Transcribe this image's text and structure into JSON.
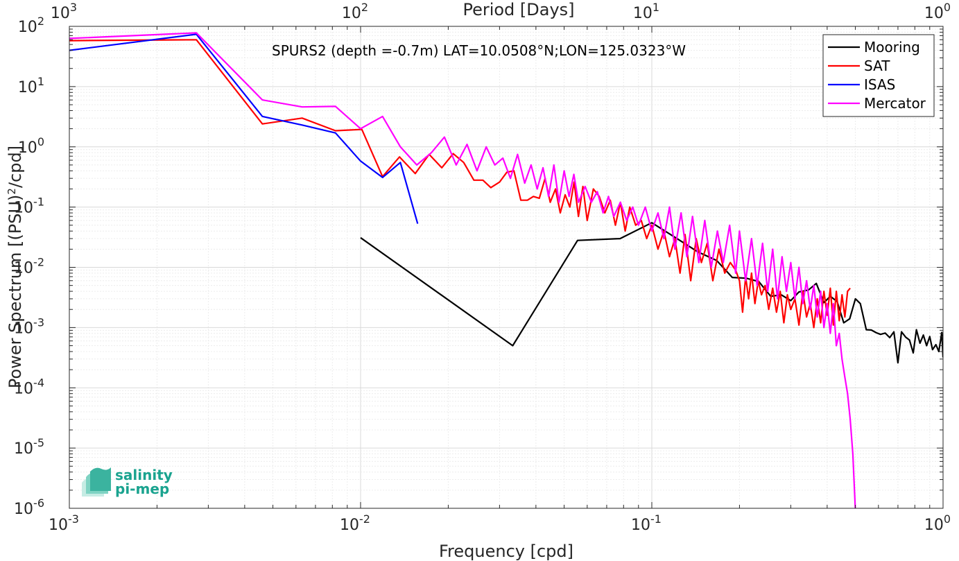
{
  "chart_data": {
    "type": "line",
    "xlabel": "Frequency [cpd]",
    "ylabel": "Power Spectrum [(PSU)",
    "ylabel_sup": "2",
    "ylabel_suffix": "/cpd]",
    "top_axis_label": "Period [Days]",
    "annotation": "SPURS2 (depth =-0.7m) LAT=10.0508°N;LON=125.0323°W",
    "x_scale": "log",
    "y_scale": "log",
    "xlim": [
      0.001,
      1
    ],
    "ylim": [
      1e-06,
      100
    ],
    "grid": true,
    "legend_position": "top-right",
    "x_ticks": [
      {
        "value": 0.001,
        "base": "10",
        "exp": "-3"
      },
      {
        "value": 0.01,
        "base": "10",
        "exp": "-2"
      },
      {
        "value": 0.1,
        "base": "10",
        "exp": "-1"
      },
      {
        "value": 1,
        "base": "10",
        "exp": "0"
      }
    ],
    "top_ticks": [
      {
        "value": 0.001,
        "base": "10",
        "exp": "3"
      },
      {
        "value": 0.01,
        "base": "10",
        "exp": "2"
      },
      {
        "value": 0.1,
        "base": "10",
        "exp": "1"
      },
      {
        "value": 1,
        "base": "10",
        "exp": "0"
      }
    ],
    "y_ticks": [
      {
        "value": 100,
        "base": "10",
        "exp": "2"
      },
      {
        "value": 10,
        "base": "10",
        "exp": "1"
      },
      {
        "value": 1,
        "base": "10",
        "exp": "0"
      },
      {
        "value": 0.1,
        "base": "10",
        "exp": "-1"
      },
      {
        "value": 0.01,
        "base": "10",
        "exp": "-2"
      },
      {
        "value": 0.001,
        "base": "10",
        "exp": "-3"
      },
      {
        "value": 0.0001,
        "base": "10",
        "exp": "-4"
      },
      {
        "value": 1e-05,
        "base": "10",
        "exp": "-5"
      },
      {
        "value": 1e-06,
        "base": "10",
        "exp": "-6"
      }
    ],
    "series": [
      {
        "name": "Mooring",
        "color": "#000000",
        "x": [
          0.01,
          0.0333,
          0.0556,
          0.0778,
          0.1,
          0.122,
          0.144,
          0.167,
          0.189,
          0.211,
          0.233,
          0.256,
          0.278,
          0.3,
          0.32,
          0.345,
          0.367,
          0.39,
          0.41,
          0.433,
          0.456,
          0.478,
          0.5,
          0.52,
          0.545,
          0.567,
          0.59,
          0.61,
          0.633,
          0.656,
          0.678,
          0.7,
          0.72,
          0.745,
          0.767,
          0.79,
          0.81,
          0.833,
          0.856,
          0.878,
          0.9,
          0.92,
          0.945,
          0.967,
          0.99,
          1.0
        ],
        "y": [
          0.031,
          0.0005,
          0.028,
          0.03,
          0.055,
          0.03,
          0.018,
          0.013,
          0.0068,
          0.0066,
          0.0058,
          0.0033,
          0.0035,
          0.0028,
          0.0039,
          0.0042,
          0.0054,
          0.0026,
          0.0033,
          0.0027,
          0.0012,
          0.0014,
          0.003,
          0.0025,
          0.00092,
          0.00091,
          0.00082,
          0.00077,
          0.00081,
          0.00068,
          0.00085,
          0.00026,
          0.00085,
          0.00069,
          0.00062,
          0.00038,
          0.00092,
          0.00055,
          0.00075,
          0.0005,
          0.00071,
          0.00043,
          0.00052,
          0.0004,
          0.00083,
          0.00032
        ]
      },
      {
        "name": "SAT",
        "color": "#ff0000",
        "x": [
          0.001,
          0.00273,
          0.0046,
          0.0063,
          0.0082,
          0.0101,
          0.0119,
          0.0136,
          0.0154,
          0.0172,
          0.019,
          0.0208,
          0.0226,
          0.0245,
          0.0263,
          0.028,
          0.03,
          0.0318,
          0.0336,
          0.0355,
          0.0374,
          0.0392,
          0.0411,
          0.043,
          0.0448,
          0.0467,
          0.0485,
          0.0504,
          0.0523,
          0.0541,
          0.056,
          0.058,
          0.06,
          0.063,
          0.066,
          0.069,
          0.072,
          0.075,
          0.078,
          0.081,
          0.084,
          0.088,
          0.092,
          0.096,
          0.1,
          0.105,
          0.11,
          0.115,
          0.12,
          0.125,
          0.13,
          0.136,
          0.142,
          0.148,
          0.155,
          0.162,
          0.17,
          0.178,
          0.186,
          0.194,
          0.2,
          0.205,
          0.21,
          0.215,
          0.22,
          0.226,
          0.232,
          0.238,
          0.245,
          0.252,
          0.26,
          0.268,
          0.276,
          0.284,
          0.292,
          0.3,
          0.31,
          0.32,
          0.33,
          0.34,
          0.35,
          0.36,
          0.37,
          0.38,
          0.39,
          0.4,
          0.41,
          0.42,
          0.43,
          0.44,
          0.45,
          0.46,
          0.47,
          0.48
        ],
        "y": [
          58,
          60,
          2.4,
          3.0,
          1.85,
          1.95,
          0.32,
          0.68,
          0.36,
          0.75,
          0.45,
          0.77,
          0.55,
          0.28,
          0.28,
          0.21,
          0.26,
          0.38,
          0.4,
          0.13,
          0.13,
          0.15,
          0.14,
          0.3,
          0.12,
          0.2,
          0.08,
          0.16,
          0.1,
          0.26,
          0.07,
          0.22,
          0.06,
          0.2,
          0.15,
          0.08,
          0.13,
          0.05,
          0.12,
          0.04,
          0.1,
          0.05,
          0.06,
          0.03,
          0.05,
          0.02,
          0.04,
          0.015,
          0.03,
          0.008,
          0.035,
          0.006,
          0.03,
          0.012,
          0.025,
          0.006,
          0.02,
          0.008,
          0.012,
          0.009,
          0.006,
          0.0018,
          0.007,
          0.003,
          0.008,
          0.0025,
          0.006,
          0.0035,
          0.005,
          0.002,
          0.0045,
          0.0018,
          0.004,
          0.0012,
          0.0035,
          0.002,
          0.003,
          0.0011,
          0.004,
          0.0015,
          0.0025,
          0.001,
          0.003,
          0.0012,
          0.004,
          0.0016,
          0.0045,
          0.0011,
          0.004,
          0.0013,
          0.0035,
          0.0015,
          0.004,
          0.0045
        ]
      },
      {
        "name": "ISAS",
        "color": "#0000ff",
        "x": [
          0.001,
          0.00273,
          0.0046,
          0.0063,
          0.0082,
          0.01,
          0.0119,
          0.0137,
          0.0157
        ],
        "y": [
          40,
          74,
          3.2,
          2.3,
          1.7,
          0.58,
          0.31,
          0.55,
          0.053
        ]
      },
      {
        "name": "Mercator",
        "color": "#ff00ff",
        "x": [
          0.001,
          0.00273,
          0.0046,
          0.0063,
          0.0082,
          0.01,
          0.0119,
          0.0137,
          0.0156,
          0.0175,
          0.0194,
          0.0213,
          0.0232,
          0.0251,
          0.027,
          0.0289,
          0.0308,
          0.0327,
          0.0346,
          0.0366,
          0.0385,
          0.0404,
          0.0423,
          0.0442,
          0.0461,
          0.048,
          0.05,
          0.052,
          0.054,
          0.056,
          0.059,
          0.062,
          0.065,
          0.068,
          0.071,
          0.074,
          0.078,
          0.082,
          0.086,
          0.09,
          0.095,
          0.1,
          0.105,
          0.11,
          0.115,
          0.12,
          0.126,
          0.132,
          0.138,
          0.145,
          0.152,
          0.16,
          0.168,
          0.176,
          0.185,
          0.194,
          0.2,
          0.21,
          0.22,
          0.23,
          0.24,
          0.25,
          0.26,
          0.27,
          0.28,
          0.29,
          0.3,
          0.31,
          0.32,
          0.33,
          0.34,
          0.35,
          0.36,
          0.37,
          0.38,
          0.39,
          0.4,
          0.41,
          0.42,
          0.43,
          0.44,
          0.45,
          0.46,
          0.47,
          0.48,
          0.49,
          0.5
        ],
        "y": [
          63,
          78,
          6.0,
          4.6,
          4.7,
          2.0,
          3.2,
          1.0,
          0.5,
          0.8,
          1.45,
          0.5,
          1.1,
          0.4,
          1.0,
          0.5,
          0.65,
          0.3,
          0.75,
          0.25,
          0.5,
          0.2,
          0.45,
          0.15,
          0.5,
          0.12,
          0.4,
          0.15,
          0.35,
          0.12,
          0.22,
          0.12,
          0.18,
          0.08,
          0.15,
          0.07,
          0.12,
          0.06,
          0.1,
          0.05,
          0.1,
          0.04,
          0.08,
          0.03,
          0.1,
          0.02,
          0.08,
          0.015,
          0.07,
          0.012,
          0.06,
          0.01,
          0.04,
          0.012,
          0.05,
          0.008,
          0.04,
          0.006,
          0.03,
          0.005,
          0.025,
          0.004,
          0.02,
          0.003,
          0.015,
          0.004,
          0.012,
          0.003,
          0.01,
          0.0025,
          0.006,
          0.002,
          0.005,
          0.0015,
          0.004,
          0.001,
          0.0025,
          0.0008,
          0.0025,
          0.0005,
          0.0008,
          0.0003,
          0.00015,
          8e-05,
          3e-05,
          8e-06,
          9e-07
        ]
      }
    ]
  },
  "logo": {
    "line1": "salinity",
    "line2": "pi-mep",
    "color": "#1aa38f"
  }
}
